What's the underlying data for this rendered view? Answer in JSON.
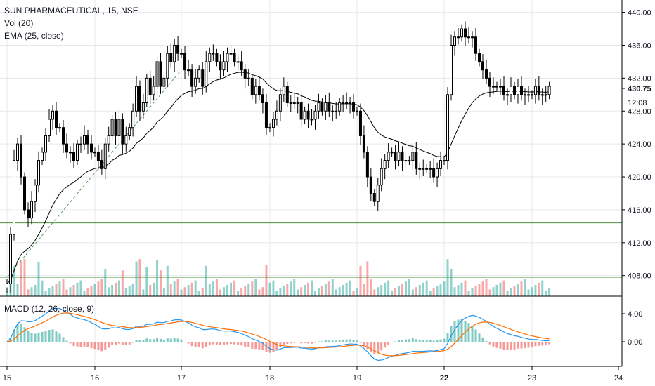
{
  "header": {
    "title": "SUN PHARMACEUTICAL, 15, NSE",
    "vol_label": "Vol (20)",
    "ema_label": "EMA (25, close)",
    "macd_label": "MACD (12, 26, close, 9)"
  },
  "price_axis": {
    "ticks": [
      408,
      412,
      416,
      420,
      424,
      428,
      432,
      436,
      440
    ],
    "tick_labels": [
      "408.00",
      "412.00",
      "416.00",
      "420.00",
      "424.00",
      "428.00",
      "432.00",
      "436.00",
      "440.00"
    ],
    "last_price_label": "430.75",
    "countdown_label": "12:08"
  },
  "macd_axis": {
    "ticks": [
      4,
      0
    ],
    "tick_labels": [
      "4.00",
      "0.00"
    ]
  },
  "time_axis": {
    "labels": [
      "15",
      "16",
      "17",
      "18",
      "19",
      "22",
      "23",
      "24"
    ]
  },
  "colors": {
    "up": "#26a69a",
    "down": "#ef5350",
    "candle": "#000000",
    "ema": "#000000",
    "trend": "#5a9a5a",
    "hline": "#4a8f3a",
    "macd_line": "#2196f3",
    "signal_line": "#ff6d00",
    "grid": "#e6e9ec"
  },
  "chart_data": {
    "type": "candlestick",
    "ylim": [
      405.5,
      441.5
    ],
    "horizontal_levels": [
      414.4,
      407.8
    ],
    "trendline": {
      "from": {
        "day_index": 0,
        "price": 407.8
      },
      "to": {
        "day_index": 2,
        "price": 433.0
      }
    },
    "days": [
      {
        "label": "15",
        "closes": [
          407,
          413,
          422,
          424,
          420,
          416,
          415,
          417,
          419,
          422,
          423,
          425,
          427,
          428,
          426,
          426,
          424,
          423,
          423,
          422,
          424,
          424,
          425,
          424,
          423
        ]
      },
      {
        "label": "16",
        "closes": [
          423,
          422,
          421,
          424,
          425,
          427,
          425,
          427,
          424,
          425,
          426,
          428,
          431,
          428,
          429,
          432,
          430,
          431,
          434,
          431,
          432,
          435,
          434,
          436,
          435
        ]
      },
      {
        "label": "17",
        "closes": [
          435,
          433,
          433,
          431,
          432,
          433,
          431,
          434,
          435,
          435,
          434,
          433,
          434,
          435,
          435,
          434,
          434,
          433,
          432,
          432,
          430,
          431,
          430,
          429,
          426
        ]
      },
      {
        "label": "18",
        "closes": [
          426,
          427,
          428,
          430,
          431,
          429,
          429,
          429,
          429,
          427,
          428,
          427,
          427,
          428,
          429,
          428,
          429,
          428,
          428,
          428,
          429,
          429,
          429,
          429,
          428
        ]
      },
      {
        "label": "19",
        "closes": [
          428,
          425,
          423,
          420,
          418,
          417,
          419,
          421,
          422,
          423,
          423,
          422,
          423,
          422,
          422,
          422,
          423,
          421,
          421,
          421,
          421,
          421,
          420,
          421,
          422
        ]
      },
      {
        "label": "22",
        "closes": [
          422,
          430,
          436,
          437,
          437,
          438,
          437,
          437,
          437,
          435,
          434,
          433,
          432,
          431,
          431,
          431,
          431,
          430,
          430,
          431,
          430,
          431,
          430,
          430,
          430
        ]
      },
      {
        "label": "23",
        "closes": [
          430,
          431,
          430,
          430,
          430,
          431
        ]
      }
    ],
    "volume_note": "relative volume per candle shown as histogram",
    "macd": {
      "fast": 12,
      "slow": 26,
      "signal": 9,
      "source": "close"
    },
    "ema_period": 25
  }
}
